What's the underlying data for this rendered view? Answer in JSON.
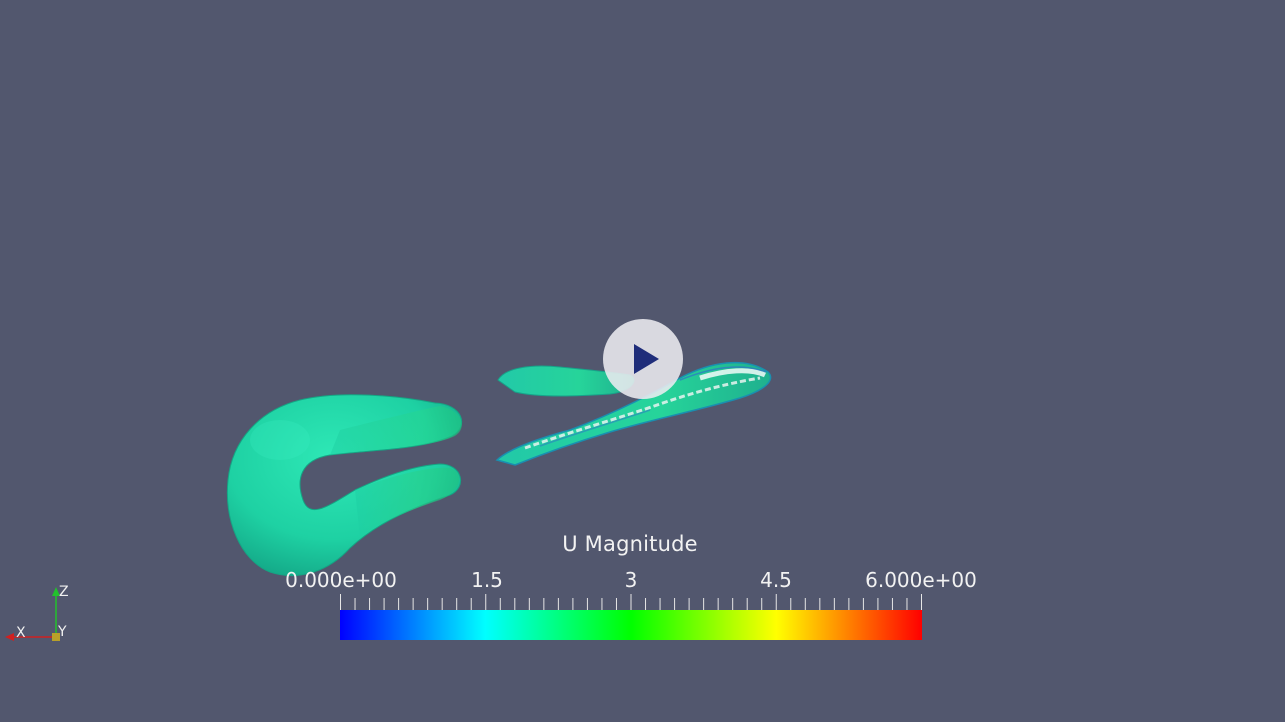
{
  "legend": {
    "title": "U Magnitude",
    "ticks": [
      "0.000e+00",
      "1.5",
      "3",
      "4.5",
      "6.000e+00"
    ],
    "range": [
      0,
      6
    ],
    "colormap": [
      "#0000ff",
      "#00ffff",
      "#00ff00",
      "#ffff00",
      "#ff0000"
    ]
  },
  "axes": {
    "z": "Z",
    "x": "X",
    "y": "Y"
  },
  "colors": {
    "background": "#52576e",
    "surface": "#1fd3a4",
    "surface_light": "#2ee6b5",
    "surface_dark": "#14a683"
  },
  "overlay": {
    "icon": "play-icon"
  }
}
